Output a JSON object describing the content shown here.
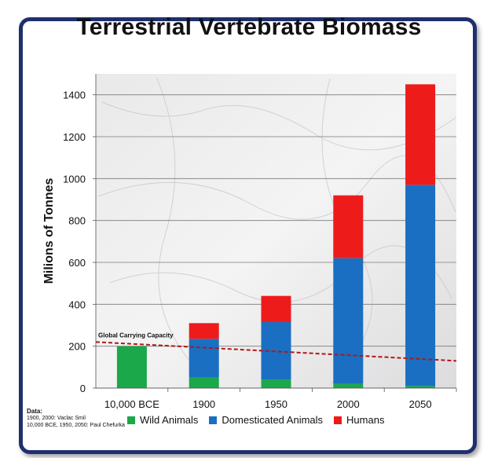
{
  "chart_data": {
    "type": "bar",
    "stacked": true,
    "title": "Terrestrial Vertebrate Biomass",
    "ylabel": "Milions of Tonnes",
    "xlabel": "",
    "ylim": [
      0,
      1500
    ],
    "yticks": [
      "0",
      "200",
      "400",
      "600",
      "800",
      "1000",
      "1200",
      "1400"
    ],
    "categories": [
      "10,000 BCE",
      "1900",
      "1950",
      "2000",
      "2050"
    ],
    "series": [
      {
        "name": "Wild Animals",
        "color": "#1aa84a",
        "values": [
          200,
          50,
          40,
          20,
          10
        ]
      },
      {
        "name": "Domesticated Animals",
        "color": "#1a6fc2",
        "values": [
          0,
          185,
          275,
          600,
          960
        ]
      },
      {
        "name": "Humans",
        "color": "#ee1b1b",
        "values": [
          0,
          75,
          125,
          300,
          480
        ]
      }
    ],
    "annotation": {
      "label": "Global Carrying Capacity",
      "start_value": 220,
      "end_value": 130,
      "color": "#b01818"
    },
    "grid": true,
    "legend_position": "bottom"
  },
  "source": {
    "header": "Data:",
    "line1": "1900, 2000: Vaclac Smil",
    "line2": "10,000 BCE, 1950, 2050: Paul Chefurka"
  }
}
